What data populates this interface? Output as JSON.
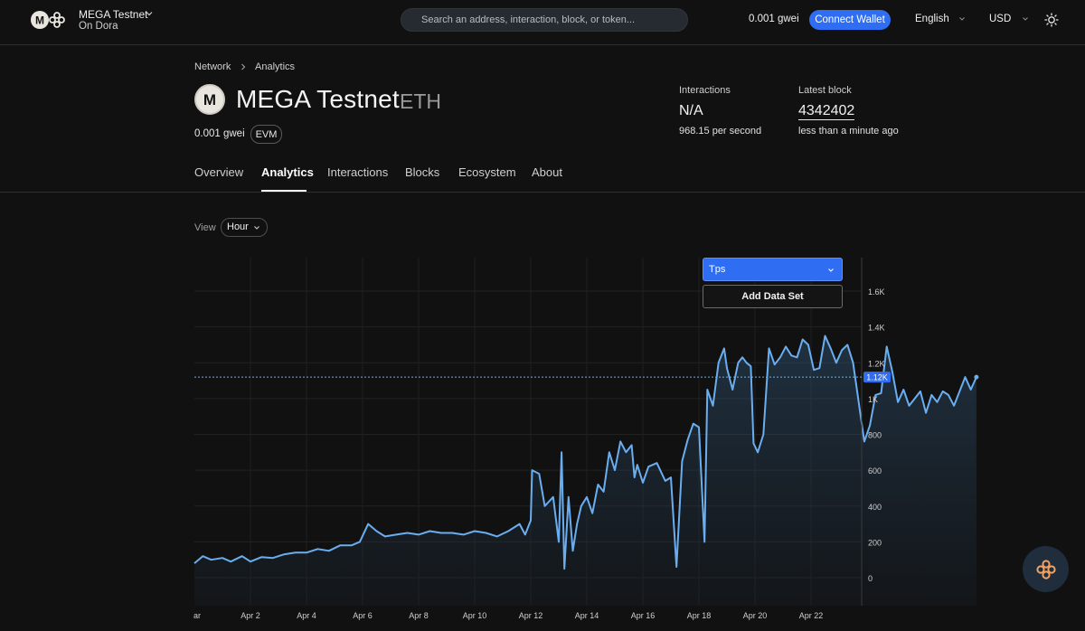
{
  "topbar": {
    "network_name": "MEGA Testnet",
    "network_sub": "On Dora",
    "search_placeholder": "Search an address, interaction, block, or token...",
    "gas": "0.001 gwei",
    "connect_label": "Connect Wallet",
    "language": "English",
    "currency": "USD",
    "icons": [
      "blockscout-logo-icon",
      "chevron-down-icon",
      "sun-icon"
    ]
  },
  "breadcrumb": [
    "Network",
    "Analytics"
  ],
  "chain": {
    "title": "MEGA Testnet",
    "symbol": "ETH",
    "gas": "0.001 gwei",
    "badge": "EVM",
    "logo_letter": "M"
  },
  "stats": {
    "interactions_label": "Interactions",
    "interactions_value": "N/A",
    "per_second": "968.15 per second",
    "latest_block_label": "Latest block",
    "latest_block_value": "4342402",
    "latest_block_time": "less than a minute ago"
  },
  "tabs": [
    {
      "label": "Overview",
      "active": false
    },
    {
      "label": "Analytics",
      "active": true
    },
    {
      "label": "Interactions",
      "active": false
    },
    {
      "label": "Blocks",
      "active": false
    },
    {
      "label": "Ecosystem",
      "active": false
    },
    {
      "label": "About",
      "active": false
    }
  ],
  "view": {
    "label": "View",
    "selected": "Hour"
  },
  "dataset": {
    "selected": "Tps",
    "add_label": "Add Data Set"
  },
  "colors": {
    "accent": "#2f6df2",
    "line": "#6aaef0",
    "background": "#111111"
  },
  "chart_data": {
    "type": "area",
    "series": [
      {
        "name": "Tps",
        "color": "#6aaef0"
      }
    ],
    "x_ticks": [
      "ar",
      "Apr 2",
      "Apr 4",
      "Apr 6",
      "Apr 8",
      "Apr 10",
      "Apr 12",
      "Apr 14",
      "Apr 16",
      "Apr 18",
      "Apr 20",
      "Apr 22"
    ],
    "y_ticks": [
      "0",
      "200",
      "400",
      "600",
      "800",
      "1K",
      "1.2K",
      "1.4K",
      "1.6K"
    ],
    "ylim": [
      0,
      1600
    ],
    "current_value": 1120,
    "current_label": "1.12K",
    "points": [
      [
        0,
        80
      ],
      [
        0.3,
        120
      ],
      [
        0.6,
        100
      ],
      [
        1.0,
        110
      ],
      [
        1.3,
        90
      ],
      [
        1.7,
        120
      ],
      [
        2.0,
        90
      ],
      [
        2.4,
        115
      ],
      [
        2.8,
        110
      ],
      [
        3.2,
        130
      ],
      [
        3.6,
        140
      ],
      [
        4.0,
        140
      ],
      [
        4.4,
        160
      ],
      [
        4.8,
        150
      ],
      [
        5.2,
        180
      ],
      [
        5.6,
        180
      ],
      [
        5.9,
        200
      ],
      [
        6.2,
        300
      ],
      [
        6.5,
        260
      ],
      [
        6.8,
        230
      ],
      [
        7.2,
        240
      ],
      [
        7.6,
        250
      ],
      [
        8.0,
        240
      ],
      [
        8.4,
        260
      ],
      [
        8.8,
        250
      ],
      [
        9.2,
        250
      ],
      [
        9.6,
        240
      ],
      [
        10.0,
        260
      ],
      [
        10.4,
        250
      ],
      [
        10.8,
        230
      ],
      [
        11.2,
        260
      ],
      [
        11.6,
        300
      ],
      [
        11.8,
        240
      ],
      [
        12.0,
        320
      ],
      [
        12.05,
        600
      ],
      [
        12.3,
        580
      ],
      [
        12.5,
        400
      ],
      [
        12.8,
        450
      ],
      [
        13.0,
        200
      ],
      [
        13.1,
        700
      ],
      [
        13.2,
        50
      ],
      [
        13.35,
        450
      ],
      [
        13.5,
        150
      ],
      [
        13.65,
        300
      ],
      [
        13.8,
        400
      ],
      [
        14.0,
        450
      ],
      [
        14.2,
        360
      ],
      [
        14.4,
        520
      ],
      [
        14.6,
        480
      ],
      [
        14.8,
        700
      ],
      [
        15.0,
        600
      ],
      [
        15.2,
        760
      ],
      [
        15.4,
        700
      ],
      [
        15.6,
        740
      ],
      [
        15.7,
        560
      ],
      [
        15.8,
        630
      ],
      [
        16.0,
        530
      ],
      [
        16.2,
        620
      ],
      [
        16.5,
        640
      ],
      [
        16.8,
        540
      ],
      [
        17.0,
        560
      ],
      [
        17.2,
        60
      ],
      [
        17.4,
        650
      ],
      [
        17.6,
        770
      ],
      [
        17.8,
        860
      ],
      [
        18.0,
        840
      ],
      [
        18.2,
        200
      ],
      [
        18.3,
        1050
      ],
      [
        18.5,
        960
      ],
      [
        18.7,
        1200
      ],
      [
        18.9,
        1280
      ],
      [
        19.0,
        1170
      ],
      [
        19.2,
        1050
      ],
      [
        19.4,
        1200
      ],
      [
        19.55,
        1230
      ],
      [
        19.7,
        1200
      ],
      [
        19.85,
        1180
      ],
      [
        19.95,
        750
      ],
      [
        20.1,
        700
      ],
      [
        20.3,
        800
      ],
      [
        20.5,
        1280
      ],
      [
        20.7,
        1190
      ],
      [
        20.9,
        1230
      ],
      [
        21.1,
        1290
      ],
      [
        21.3,
        1240
      ],
      [
        21.5,
        1230
      ],
      [
        21.7,
        1330
      ],
      [
        21.9,
        1300
      ],
      [
        22.1,
        1160
      ],
      [
        22.3,
        1170
      ],
      [
        22.5,
        1350
      ],
      [
        22.7,
        1280
      ],
      [
        22.9,
        1200
      ],
      [
        23.1,
        1270
      ],
      [
        23.3,
        1300
      ],
      [
        23.5,
        1200
      ],
      [
        23.7,
        980
      ],
      [
        23.9,
        760
      ],
      [
        24.1,
        850
      ],
      [
        24.3,
        1020
      ],
      [
        24.5,
        1030
      ],
      [
        24.7,
        1290
      ],
      [
        24.9,
        1150
      ],
      [
        25.1,
        980
      ],
      [
        25.3,
        1050
      ],
      [
        25.5,
        960
      ],
      [
        25.7,
        1000
      ],
      [
        25.9,
        1040
      ],
      [
        26.1,
        920
      ],
      [
        26.3,
        1020
      ],
      [
        26.5,
        980
      ],
      [
        26.7,
        1040
      ],
      [
        26.9,
        1020
      ],
      [
        27.1,
        960
      ],
      [
        27.3,
        1040
      ],
      [
        27.5,
        1120
      ],
      [
        27.7,
        1050
      ],
      [
        27.9,
        1120
      ]
    ]
  }
}
